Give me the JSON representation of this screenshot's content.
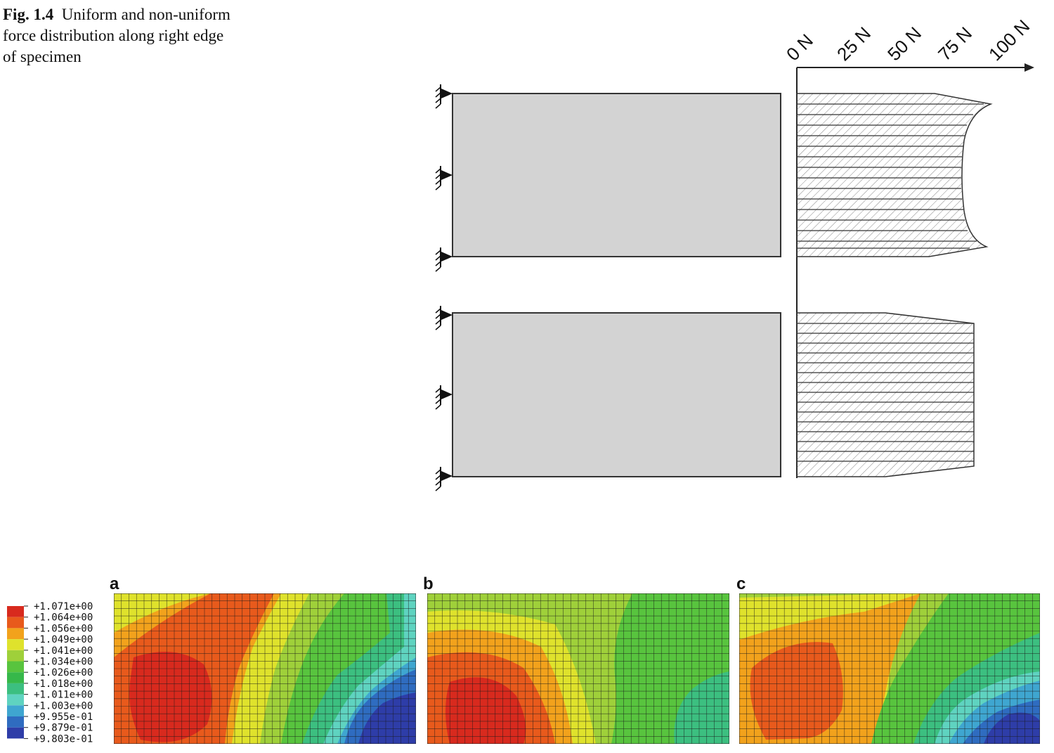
{
  "caption": {
    "label": "Fig. 1.4",
    "text": "Uniform and non-uniform force distribution along right edge of specimen"
  },
  "force_axis": {
    "ticks": [
      "0 N",
      "25 N",
      "50 N",
      "75 N",
      "100 N"
    ],
    "nonuniform_profile": {
      "edge_value_N": 90,
      "center_value_N": 78,
      "peak_at_ends": true
    },
    "uniform_profile": {
      "value_N": 88
    }
  },
  "panels": [
    "a",
    "b",
    "c"
  ],
  "legend": {
    "values": [
      "+1.071e+00",
      "+1.064e+00",
      "+1.056e+00",
      "+1.049e+00",
      "+1.041e+00",
      "+1.034e+00",
      "+1.026e+00",
      "+1.018e+00",
      "+1.011e+00",
      "+1.003e+00",
      "+9.955e-01",
      "+9.879e-01",
      "+9.803e-01"
    ],
    "colors": [
      "#d82a1e",
      "#e85a1c",
      "#f2a21c",
      "#dfe22c",
      "#9fd03a",
      "#58c43e",
      "#36b84a",
      "#3cbf80",
      "#5fd3c0",
      "#3fa6d0",
      "#2f6cc0",
      "#2e3da8"
    ]
  },
  "colors": {
    "specimen_fill": "#d3d3d3",
    "mesh": "#1a1a1a"
  }
}
